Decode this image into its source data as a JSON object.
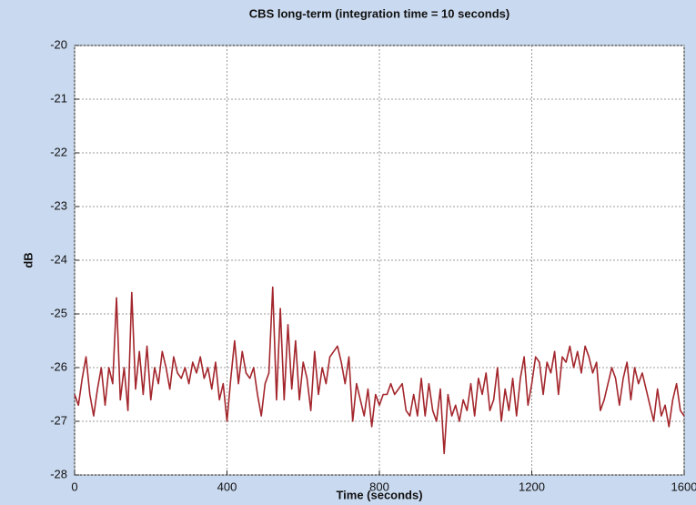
{
  "chart_data": {
    "type": "line",
    "title": "CBS long-term (integration time = 10 seconds)",
    "x_label": "Time (seconds)",
    "y_label": "dB",
    "x": [
      0,
      10,
      20,
      30,
      40,
      50,
      60,
      70,
      80,
      90,
      100,
      110,
      120,
      130,
      140,
      150,
      160,
      170,
      180,
      190,
      200,
      210,
      220,
      230,
      240,
      250,
      260,
      270,
      280,
      290,
      300,
      310,
      320,
      330,
      340,
      350,
      360,
      370,
      380,
      390,
      400,
      410,
      420,
      430,
      440,
      450,
      460,
      470,
      480,
      490,
      500,
      510,
      520,
      530,
      540,
      550,
      560,
      570,
      580,
      590,
      600,
      610,
      620,
      630,
      640,
      650,
      660,
      670,
      680,
      690,
      700,
      710,
      720,
      730,
      740,
      750,
      760,
      770,
      780,
      790,
      800,
      810,
      820,
      830,
      840,
      850,
      860,
      870,
      880,
      890,
      900,
      910,
      920,
      930,
      940,
      950,
      960,
      970,
      980,
      990,
      1000,
      1010,
      1020,
      1030,
      1040,
      1050,
      1060,
      1070,
      1080,
      1090,
      1100,
      1110,
      1120,
      1130,
      1140,
      1150,
      1160,
      1170,
      1180,
      1190,
      1200,
      1210,
      1220,
      1230,
      1240,
      1250,
      1260,
      1270,
      1280,
      1290,
      1300,
      1310,
      1320,
      1330,
      1340,
      1350,
      1360,
      1370,
      1380,
      1390,
      1400,
      1410,
      1420,
      1430,
      1440,
      1450,
      1460,
      1470,
      1480,
      1490,
      1500,
      1510,
      1520,
      1530,
      1540,
      1550,
      1560,
      1570,
      1580,
      1590,
      1600
    ],
    "series": [
      {
        "color": "#a3262c",
        "values": [
          -26.5,
          -26.7,
          -26.2,
          -25.8,
          -26.5,
          -26.9,
          -26.4,
          -26.0,
          -26.7,
          -26.0,
          -26.3,
          -24.7,
          -26.6,
          -26.0,
          -26.8,
          -24.6,
          -26.4,
          -25.7,
          -26.5,
          -25.6,
          -26.6,
          -26.0,
          -26.3,
          -25.7,
          -26.0,
          -26.4,
          -25.8,
          -26.1,
          -26.2,
          -26.0,
          -26.3,
          -25.9,
          -26.1,
          -25.8,
          -26.2,
          -26.0,
          -26.4,
          -25.9,
          -26.6,
          -26.3,
          -27.0,
          -26.2,
          -25.5,
          -26.3,
          -25.7,
          -26.1,
          -26.2,
          -26.0,
          -26.5,
          -26.9,
          -26.3,
          -26.1,
          -24.5,
          -26.6,
          -24.9,
          -26.6,
          -25.2,
          -26.4,
          -25.5,
          -26.6,
          -25.9,
          -26.2,
          -26.8,
          -25.7,
          -26.5,
          -26.0,
          -26.3,
          -25.8,
          -25.7,
          -25.6,
          -25.9,
          -26.3,
          -25.8,
          -27.0,
          -26.3,
          -26.6,
          -26.9,
          -26.4,
          -27.1,
          -26.5,
          -26.7,
          -26.5,
          -26.5,
          -26.3,
          -26.5,
          -26.4,
          -26.3,
          -26.8,
          -26.9,
          -26.5,
          -26.9,
          -26.2,
          -26.9,
          -26.3,
          -26.8,
          -27.0,
          -26.4,
          -27.6,
          -26.5,
          -26.9,
          -26.7,
          -27.0,
          -26.6,
          -26.8,
          -26.3,
          -26.9,
          -26.2,
          -26.5,
          -26.1,
          -26.8,
          -26.6,
          -26.0,
          -27.0,
          -26.4,
          -26.8,
          -26.2,
          -26.9,
          -26.2,
          -25.8,
          -26.7,
          -26.3,
          -25.8,
          -25.9,
          -26.5,
          -25.9,
          -26.1,
          -25.7,
          -26.5,
          -25.8,
          -25.9,
          -25.6,
          -26.0,
          -25.7,
          -26.1,
          -25.6,
          -25.8,
          -26.1,
          -25.9,
          -26.8,
          -26.6,
          -26.3,
          -26.0,
          -26.2,
          -26.7,
          -26.2,
          -25.9,
          -26.6,
          -26.0,
          -26.3,
          -26.1,
          -26.4,
          -26.7,
          -27.0,
          -26.4,
          -26.9,
          -26.7,
          -27.1,
          -26.6,
          -26.3,
          -26.8,
          -26.9
        ]
      }
    ],
    "xlim": [
      0,
      1600
    ],
    "xticks": [
      0,
      400,
      800,
      1200,
      1600
    ],
    "ylim": [
      -28,
      -20
    ],
    "yticks": [
      -28,
      -27,
      -26,
      -25,
      -24,
      -23,
      -22,
      -21,
      -20
    ],
    "grid": true
  }
}
